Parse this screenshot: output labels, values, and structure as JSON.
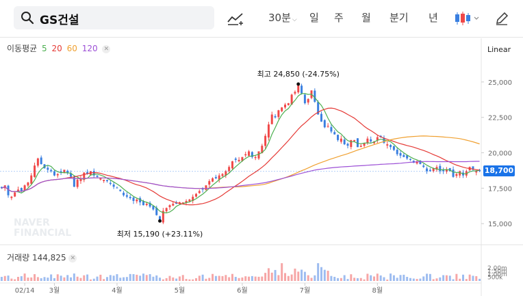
{
  "toolbar": {
    "search_value": "GS건설",
    "interval": "30분",
    "periods": [
      "일",
      "주",
      "월",
      "분기",
      "년"
    ],
    "selected_period": "일"
  },
  "ma_legend": {
    "label": "이동평균",
    "periods": [
      "5",
      "20",
      "60",
      "120"
    ],
    "colors": [
      "#4caf50",
      "#e53935",
      "#f0a030",
      "#9c4fd6"
    ]
  },
  "scale_type": "Linear",
  "volume_legend": {
    "label": "거래량",
    "value": "144,825"
  },
  "watermark": "NAVER FINANCIAL",
  "colors": {
    "up": "#f04848",
    "down": "#3a7fe0",
    "accent": "#1a73e8"
  },
  "chart_data": {
    "type": "candlestick",
    "title": "",
    "x_tick_labels": [
      "02/14",
      "3월",
      "4월",
      "5월",
      "6월",
      "7월",
      "8월"
    ],
    "y_tick_labels": [
      "25,000",
      "22,500",
      "20,000",
      "17,500",
      "15,000"
    ],
    "y_ticks": [
      25000,
      22500,
      20000,
      17500,
      15000
    ],
    "ylim": [
      13800,
      26200
    ],
    "volume_tick_labels": [
      "2,00m",
      "1,50m",
      "1,00m",
      "500k"
    ],
    "current_price": 18700,
    "current_price_label": "18,700",
    "high_annotation": {
      "label": "최고 24,850 (-24.75%)",
      "value": 24850,
      "index": 90
    },
    "low_annotation": {
      "label": "최저 15,190 (+23.11%)",
      "value": 15190,
      "index": 48
    },
    "close": [
      17500,
      17700,
      17000,
      16900,
      17200,
      17400,
      17300,
      17700,
      17900,
      18400,
      19100,
      19600,
      19200,
      18900,
      18800,
      18700,
      18400,
      18500,
      18600,
      18800,
      18600,
      18300,
      17600,
      18100,
      18200,
      18600,
      18500,
      18700,
      18400,
      18300,
      18200,
      18100,
      18000,
      17800,
      17600,
      17500,
      17300,
      17000,
      16900,
      16800,
      16600,
      16700,
      16500,
      16300,
      16400,
      16200,
      16000,
      15600,
      15200,
      15900,
      16100,
      16300,
      16400,
      16400,
      16500,
      16500,
      16600,
      16700,
      16900,
      17100,
      17300,
      17400,
      17700,
      18000,
      18200,
      18200,
      18400,
      18500,
      18700,
      19000,
      19400,
      19500,
      19500,
      19700,
      19900,
      20100,
      19700,
      19700,
      20100,
      20500,
      21200,
      22000,
      22700,
      22500,
      23000,
      23200,
      23400,
      23500,
      24100,
      24300,
      24800,
      24200,
      23500,
      23800,
      24400,
      23600,
      22700,
      22200,
      21800,
      21900,
      21500,
      21300,
      20900,
      21000,
      20600,
      20500,
      20900,
      20900,
      20400,
      20500,
      20700,
      21000,
      20800,
      20800,
      21100,
      21100,
      20700,
      20600,
      20400,
      20200,
      19900,
      19800,
      19700,
      19600,
      19500,
      19300,
      19400,
      19200,
      19000,
      18700,
      18700,
      18900,
      19000,
      18700,
      18700,
      18800,
      18700,
      18300,
      18500,
      18700,
      18400,
      18700,
      19000,
      18800,
      18700,
      18700
    ]
  }
}
